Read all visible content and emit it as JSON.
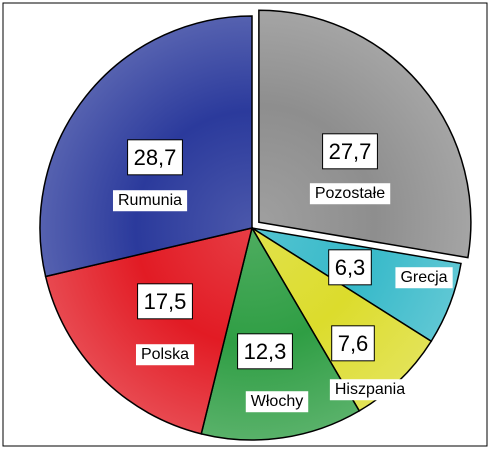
{
  "chart_data": {
    "type": "pie",
    "categories": [
      "Pozostałe",
      "Grecja",
      "Hiszpania",
      "Włochy",
      "Polska",
      "Rumunia"
    ],
    "values": [
      27.7,
      6.3,
      7.6,
      12.3,
      17.5,
      28.7
    ],
    "value_labels": [
      "27,7",
      "6,3",
      "7,6",
      "12,3",
      "17,5",
      "28,7"
    ],
    "colors": [
      "#8e8e8e",
      "#36b9c9",
      "#dcdc2c",
      "#2f9e44",
      "#e21b24",
      "#2b3a9c"
    ],
    "exploded": "Pozostałe"
  }
}
